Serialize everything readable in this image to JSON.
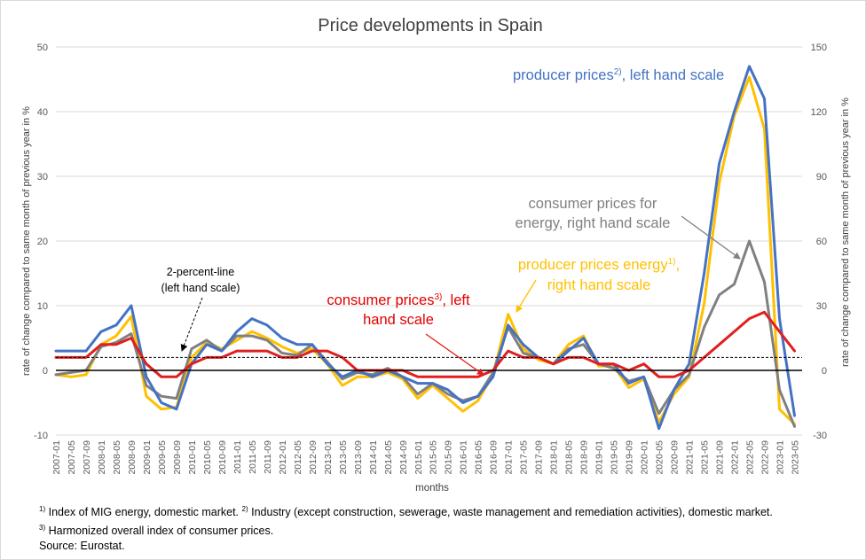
{
  "chart_data": {
    "type": "line",
    "title": "Price developments in Spain",
    "xlabel": "months",
    "ylabel_left": "rate of change compared to same month of previous year in %",
    "ylabel_right": "rate of change compared to same month of previous year in %",
    "ylim_left": [
      -10,
      50
    ],
    "ylim_right": [
      -30,
      150
    ],
    "yticks_left": [
      "-10",
      "0",
      "10",
      "20",
      "30",
      "40",
      "50"
    ],
    "yticks_right": [
      "-30",
      "0",
      "30",
      "60",
      "90",
      "120",
      "150"
    ],
    "x_ticks": [
      "2007-01",
      "2007-05",
      "2007-09",
      "2008-01",
      "2008-05",
      "2008-09",
      "2009-01",
      "2009-05",
      "2009-09",
      "2010-01",
      "2010-05",
      "2010-09",
      "2011-01",
      "2011-05",
      "2011-09",
      "2012-01",
      "2012-05",
      "2012-09",
      "2013-01",
      "2013-05",
      "2013-09",
      "2014-01",
      "2014-05",
      "2014-09",
      "2015-01",
      "2015-05",
      "2015-09",
      "2016-01",
      "2016-05",
      "2016-09",
      "2017-01",
      "2017-05",
      "2017-09",
      "2018-01",
      "2018-05",
      "2018-09",
      "2019-01",
      "2019-05",
      "2019-09",
      "2020-01",
      "2020-05",
      "2020-09",
      "2021-01",
      "2021-05",
      "2021-09",
      "2022-01",
      "2022-05",
      "2022-09",
      "2023-01",
      "2023-05"
    ],
    "reference_line": {
      "value": 2,
      "label_line1": "2-percent-line",
      "label_line2": "(left hand scale)"
    },
    "grid": true,
    "series": [
      {
        "name": "producer prices energy, right hand scale",
        "axis": "right",
        "color": "#ffc000",
        "points": [
          [
            "2007-01",
            -2
          ],
          [
            "2007-05",
            -3
          ],
          [
            "2007-09",
            -2
          ],
          [
            "2008-01",
            12
          ],
          [
            "2008-05",
            16
          ],
          [
            "2008-09",
            25
          ],
          [
            "2009-01",
            -12
          ],
          [
            "2009-05",
            -18
          ],
          [
            "2009-09",
            -17
          ],
          [
            "2010-01",
            6
          ],
          [
            "2010-05",
            13
          ],
          [
            "2010-09",
            10
          ],
          [
            "2011-01",
            14
          ],
          [
            "2011-05",
            18
          ],
          [
            "2011-09",
            15
          ],
          [
            "2012-01",
            11
          ],
          [
            "2012-05",
            8
          ],
          [
            "2012-09",
            10
          ],
          [
            "2013-01",
            3
          ],
          [
            "2013-05",
            -7
          ],
          [
            "2013-09",
            -3
          ],
          [
            "2014-01",
            -3
          ],
          [
            "2014-05",
            -1
          ],
          [
            "2014-09",
            -4
          ],
          [
            "2015-01",
            -13
          ],
          [
            "2015-05",
            -7
          ],
          [
            "2015-09",
            -13
          ],
          [
            "2016-01",
            -19
          ],
          [
            "2016-05",
            -14
          ],
          [
            "2016-09",
            -2
          ],
          [
            "2017-01",
            26
          ],
          [
            "2017-05",
            10
          ],
          [
            "2017-09",
            5
          ],
          [
            "2018-01",
            3
          ],
          [
            "2018-05",
            12
          ],
          [
            "2018-09",
            16
          ],
          [
            "2019-01",
            2
          ],
          [
            "2019-05",
            2
          ],
          [
            "2019-09",
            -8
          ],
          [
            "2020-01",
            -4
          ],
          [
            "2020-05",
            -24
          ],
          [
            "2020-09",
            -11
          ],
          [
            "2021-01",
            -3
          ],
          [
            "2021-05",
            31
          ],
          [
            "2021-09",
            87
          ],
          [
            "2022-01",
            118
          ],
          [
            "2022-05",
            136
          ],
          [
            "2022-09",
            112
          ],
          [
            "2023-01",
            -18
          ],
          [
            "2023-05",
            -25
          ]
        ]
      },
      {
        "name": "consumer prices for energy, right hand scale",
        "axis": "right",
        "color": "#808080",
        "points": [
          [
            "2007-01",
            -2
          ],
          [
            "2007-05",
            -1
          ],
          [
            "2007-09",
            0
          ],
          [
            "2008-01",
            11
          ],
          [
            "2008-05",
            13
          ],
          [
            "2008-09",
            17
          ],
          [
            "2009-01",
            -7
          ],
          [
            "2009-05",
            -12
          ],
          [
            "2009-09",
            -13
          ],
          [
            "2010-01",
            10
          ],
          [
            "2010-05",
            14
          ],
          [
            "2010-09",
            9
          ],
          [
            "2011-01",
            16
          ],
          [
            "2011-05",
            16
          ],
          [
            "2011-09",
            14
          ],
          [
            "2012-01",
            8
          ],
          [
            "2012-05",
            7
          ],
          [
            "2012-09",
            12
          ],
          [
            "2013-01",
            4
          ],
          [
            "2013-05",
            -4
          ],
          [
            "2013-09",
            -1
          ],
          [
            "2014-01",
            -2
          ],
          [
            "2014-05",
            1
          ],
          [
            "2014-09",
            -3
          ],
          [
            "2015-01",
            -11
          ],
          [
            "2015-05",
            -6
          ],
          [
            "2015-09",
            -11
          ],
          [
            "2016-01",
            -14
          ],
          [
            "2016-05",
            -12
          ],
          [
            "2016-09",
            -1
          ],
          [
            "2017-01",
            20
          ],
          [
            "2017-05",
            8
          ],
          [
            "2017-09",
            6
          ],
          [
            "2018-01",
            3
          ],
          [
            "2018-05",
            10
          ],
          [
            "2018-09",
            12
          ],
          [
            "2019-01",
            3
          ],
          [
            "2019-05",
            1
          ],
          [
            "2019-09",
            -5
          ],
          [
            "2020-01",
            -3
          ],
          [
            "2020-05",
            -20
          ],
          [
            "2020-09",
            -9
          ],
          [
            "2021-01",
            -2
          ],
          [
            "2021-05",
            20
          ],
          [
            "2021-09",
            35
          ],
          [
            "2022-01",
            40
          ],
          [
            "2022-05",
            60
          ],
          [
            "2022-09",
            41
          ],
          [
            "2023-01",
            -9
          ],
          [
            "2023-05",
            -26
          ]
        ]
      },
      {
        "name": "producer prices, left hand scale",
        "axis": "left",
        "color": "#4472c4",
        "points": [
          [
            "2007-01",
            3
          ],
          [
            "2007-05",
            3
          ],
          [
            "2007-09",
            3
          ],
          [
            "2008-01",
            6
          ],
          [
            "2008-05",
            7
          ],
          [
            "2008-09",
            10
          ],
          [
            "2009-01",
            -1
          ],
          [
            "2009-05",
            -5
          ],
          [
            "2009-09",
            -6
          ],
          [
            "2010-01",
            1
          ],
          [
            "2010-05",
            4
          ],
          [
            "2010-09",
            3
          ],
          [
            "2011-01",
            6
          ],
          [
            "2011-05",
            8
          ],
          [
            "2011-09",
            7
          ],
          [
            "2012-01",
            5
          ],
          [
            "2012-05",
            4
          ],
          [
            "2012-09",
            4
          ],
          [
            "2013-01",
            1
          ],
          [
            "2013-05",
            -1
          ],
          [
            "2013-09",
            0
          ],
          [
            "2014-01",
            -1
          ],
          [
            "2014-05",
            0
          ],
          [
            "2014-09",
            -1
          ],
          [
            "2015-01",
            -2
          ],
          [
            "2015-05",
            -2
          ],
          [
            "2015-09",
            -3
          ],
          [
            "2016-01",
            -5
          ],
          [
            "2016-05",
            -4
          ],
          [
            "2016-09",
            -1
          ],
          [
            "2017-01",
            7
          ],
          [
            "2017-05",
            4
          ],
          [
            "2017-09",
            2
          ],
          [
            "2018-01",
            1
          ],
          [
            "2018-05",
            3
          ],
          [
            "2018-09",
            5
          ],
          [
            "2019-01",
            1
          ],
          [
            "2019-05",
            1
          ],
          [
            "2019-09",
            -2
          ],
          [
            "2020-01",
            -1
          ],
          [
            "2020-05",
            -9
          ],
          [
            "2020-09",
            -3
          ],
          [
            "2021-01",
            1
          ],
          [
            "2021-05",
            15
          ],
          [
            "2021-09",
            32
          ],
          [
            "2022-01",
            40
          ],
          [
            "2022-05",
            47
          ],
          [
            "2022-09",
            42
          ],
          [
            "2023-01",
            8
          ],
          [
            "2023-05",
            -7
          ]
        ]
      },
      {
        "name": "consumer prices, left hand scale",
        "axis": "left",
        "color": "#e02020",
        "points": [
          [
            "2007-01",
            2
          ],
          [
            "2007-05",
            2
          ],
          [
            "2007-09",
            2
          ],
          [
            "2008-01",
            4
          ],
          [
            "2008-05",
            4
          ],
          [
            "2008-09",
            5
          ],
          [
            "2009-01",
            1
          ],
          [
            "2009-05",
            -1
          ],
          [
            "2009-09",
            -1
          ],
          [
            "2010-01",
            1
          ],
          [
            "2010-05",
            2
          ],
          [
            "2010-09",
            2
          ],
          [
            "2011-01",
            3
          ],
          [
            "2011-05",
            3
          ],
          [
            "2011-09",
            3
          ],
          [
            "2012-01",
            2
          ],
          [
            "2012-05",
            2
          ],
          [
            "2012-09",
            3
          ],
          [
            "2013-01",
            3
          ],
          [
            "2013-05",
            2
          ],
          [
            "2013-09",
            0
          ],
          [
            "2014-01",
            0
          ],
          [
            "2014-05",
            0
          ],
          [
            "2014-09",
            0
          ],
          [
            "2015-01",
            -1
          ],
          [
            "2015-05",
            -1
          ],
          [
            "2015-09",
            -1
          ],
          [
            "2016-01",
            -1
          ],
          [
            "2016-05",
            -1
          ],
          [
            "2016-09",
            0
          ],
          [
            "2017-01",
            3
          ],
          [
            "2017-05",
            2
          ],
          [
            "2017-09",
            2
          ],
          [
            "2018-01",
            1
          ],
          [
            "2018-05",
            2
          ],
          [
            "2018-09",
            2
          ],
          [
            "2019-01",
            1
          ],
          [
            "2019-05",
            1
          ],
          [
            "2019-09",
            0
          ],
          [
            "2020-01",
            1
          ],
          [
            "2020-05",
            -1
          ],
          [
            "2020-09",
            -1
          ],
          [
            "2021-01",
            0
          ],
          [
            "2021-05",
            2
          ],
          [
            "2021-09",
            4
          ],
          [
            "2022-01",
            6
          ],
          [
            "2022-05",
            8
          ],
          [
            "2022-09",
            9
          ],
          [
            "2023-01",
            6
          ],
          [
            "2023-05",
            3
          ]
        ]
      }
    ],
    "annotations": {
      "producer": {
        "text": "producer prices",
        "sup": "2)",
        "tail": ", left hand scale"
      },
      "consumer_energy": {
        "line1": "consumer prices for",
        "line2": "energy, right hand scale"
      },
      "producer_energy": {
        "text": "producer prices energy",
        "sup": "1)",
        "tail": ",",
        "line2": "right hand scale"
      },
      "consumer": {
        "text": "consumer prices",
        "sup": "3)",
        "tail": ", left",
        "line2": "hand scale"
      }
    }
  },
  "footnotes": {
    "note1_mark": "1)",
    "note1": " Index of MIG energy, domestic market. ",
    "note2_mark": "2)",
    "note2": " Industry (except construction, sewerage, waste management and remediation activities), domestic market.",
    "note3_mark": "3)",
    "note3": " Harmonized overall index of consumer prices.",
    "source": "Source: Eurostat."
  }
}
